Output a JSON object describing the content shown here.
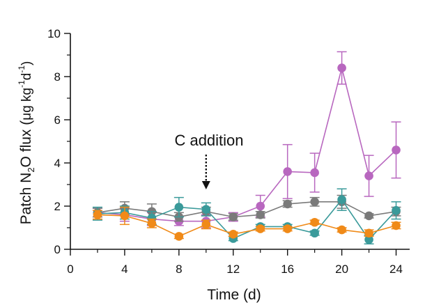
{
  "chart_data": {
    "type": "line",
    "title": "",
    "xlabel": "Time (d)",
    "ylabel": "Patch N₂O flux (μg kg⁻¹d⁻¹)",
    "ylabel_parts": {
      "prefix": "Patch N",
      "sub": "2",
      "middle": "O flux (",
      "mu": "μ",
      "g": "g kg",
      "exp1": "-1",
      "d": "d",
      "exp2": "-1",
      "suffix": ")"
    },
    "xlim": [
      0,
      25
    ],
    "ylim": [
      0,
      10
    ],
    "x_ticks": [
      0,
      4,
      8,
      12,
      16,
      20,
      24
    ],
    "y_ticks": [
      0,
      2,
      4,
      6,
      8,
      10
    ],
    "annotation": {
      "text": "C addition",
      "x": 10
    },
    "x": [
      2,
      4,
      6,
      8,
      10,
      12,
      14,
      16,
      18,
      20,
      22,
      24
    ],
    "series": [
      {
        "name": "purple",
        "color": "#b867bf",
        "values": [
          1.7,
          1.6,
          1.4,
          1.3,
          1.3,
          1.5,
          2.0,
          3.6,
          3.55,
          8.4,
          3.4,
          4.6
        ],
        "errors": [
          0.2,
          0.3,
          0.3,
          0.2,
          0.3,
          0.2,
          0.5,
          1.25,
          0.9,
          0.75,
          0.95,
          1.3
        ]
      },
      {
        "name": "gray",
        "color": "#7a7a7a",
        "values": [
          1.7,
          1.9,
          1.75,
          1.5,
          1.75,
          1.5,
          1.6,
          2.1,
          2.2,
          2.2,
          1.55,
          1.75
        ],
        "errors": [
          0.2,
          0.3,
          0.35,
          0.2,
          0.2,
          0.15,
          0.15,
          0.15,
          0.2,
          0.3,
          0.1,
          0.2
        ]
      },
      {
        "name": "teal",
        "color": "#3a9a9a",
        "values": [
          1.65,
          1.7,
          1.45,
          1.95,
          1.85,
          0.5,
          1.05,
          1.05,
          0.75,
          2.3,
          0.45,
          1.8
        ],
        "errors": [
          0.3,
          0.3,
          0.3,
          0.45,
          0.3,
          0.1,
          0.1,
          0.1,
          0.1,
          0.5,
          0.2,
          0.4
        ]
      },
      {
        "name": "orange",
        "color": "#f08a18",
        "values": [
          1.6,
          1.55,
          1.2,
          0.6,
          1.15,
          0.7,
          0.95,
          0.95,
          1.25,
          0.9,
          0.75,
          1.1
        ],
        "errors": [
          0.2,
          0.4,
          0.2,
          0.1,
          0.2,
          0.1,
          0.1,
          0.1,
          0.1,
          0.1,
          0.15,
          0.15
        ]
      }
    ]
  }
}
